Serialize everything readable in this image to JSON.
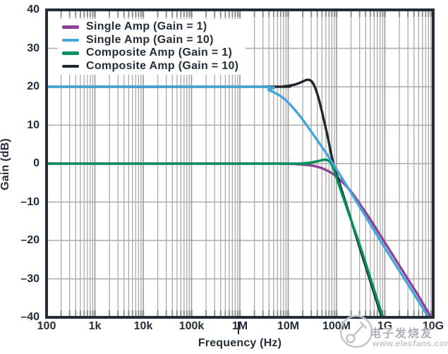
{
  "chart_data": {
    "type": "line",
    "title": "",
    "x_axis": {
      "label": "Frequency (Hz)",
      "scale": "log",
      "min": 100,
      "max": 10000000000,
      "tick_values": [
        100,
        1000,
        10000,
        100000,
        1000000,
        10000000,
        100000000,
        1000000000,
        10000000000
      ],
      "tick_labels": [
        "100",
        "1k",
        "10k",
        "100k",
        "1M",
        "10M",
        "100M",
        "1G",
        "10G"
      ]
    },
    "y_axis": {
      "label": "Gain (dB)",
      "min": -40,
      "max": 40,
      "tick_step": 10,
      "tick_values": [
        40,
        30,
        20,
        10,
        0,
        -10,
        -20,
        -30,
        -40
      ],
      "tick_labels": [
        "40",
        "30",
        "20",
        "10",
        "0",
        "–10",
        "–20",
        "–30",
        "–40"
      ]
    },
    "grid": true,
    "legend_position": "top-left",
    "series": [
      {
        "name": "Single Amp (Gain = 1)",
        "color": "#8e4196",
        "points": [
          [
            100,
            0
          ],
          [
            3000000,
            0
          ],
          [
            8000000,
            -0.05
          ],
          [
            15000000,
            -0.15
          ],
          [
            30000000,
            -0.5
          ],
          [
            50000000,
            -1.2
          ],
          [
            80000000,
            -2.5
          ],
          [
            120000000,
            -4.3
          ],
          [
            200000000,
            -7.3
          ],
          [
            300000000,
            -10.4
          ],
          [
            500000000,
            -14.5
          ],
          [
            800000000,
            -18.6
          ],
          [
            1300000000,
            -22.8
          ],
          [
            2500000000,
            -28.5
          ],
          [
            5000000000,
            -34.5
          ],
          [
            10000000000,
            -41
          ]
        ]
      },
      {
        "name": "Single Amp (Gain = 10)",
        "color": "#44a5d8",
        "points": [
          [
            100,
            20
          ],
          [
            2000000,
            20
          ],
          [
            4000000,
            19.1
          ],
          [
            8000000,
            17
          ],
          [
            16000000,
            13
          ],
          [
            32000000,
            7.8
          ],
          [
            64000000,
            2.3
          ],
          [
            130000000,
            -3.8
          ],
          [
            260000000,
            -9.9
          ],
          [
            510000000,
            -15.9
          ],
          [
            1000000000,
            -21.9
          ],
          [
            2000000000,
            -27.9
          ],
          [
            4000000000,
            -33.9
          ],
          [
            10000000000,
            -41.9
          ]
        ]
      },
      {
        "name": "Composite Amp (Gain = 1)",
        "color": "#00905c",
        "points": [
          [
            100,
            0
          ],
          [
            10000000,
            0
          ],
          [
            20000000,
            0.1
          ],
          [
            30000000,
            0.3
          ],
          [
            40000000,
            0.6
          ],
          [
            50000000,
            0.9
          ],
          [
            58000000,
            1.0
          ],
          [
            67000000,
            0.8
          ],
          [
            76000000,
            0.2
          ],
          [
            88000000,
            -1.6
          ],
          [
            105000000,
            -4.5
          ],
          [
            135000000,
            -8.5
          ],
          [
            185000000,
            -13.5
          ],
          [
            290000000,
            -20.5
          ],
          [
            460000000,
            -28.3
          ],
          [
            730000000,
            -36.2
          ],
          [
            1000000000,
            -41.5
          ]
        ]
      },
      {
        "name": "Composite Amp (Gain = 10)",
        "color": "#20262e",
        "points": [
          [
            100,
            20
          ],
          [
            4000000,
            20
          ],
          [
            8000000,
            20.1
          ],
          [
            13000000,
            20.5
          ],
          [
            18000000,
            21.1
          ],
          [
            23000000,
            21.7
          ],
          [
            27000000,
            21.8
          ],
          [
            31000000,
            21.3
          ],
          [
            36000000,
            19.8
          ],
          [
            43000000,
            16.8
          ],
          [
            52000000,
            12.6
          ],
          [
            65000000,
            7.2
          ],
          [
            86000000,
            0
          ],
          [
            120000000,
            -5.8
          ],
          [
            170000000,
            -11.8
          ],
          [
            270000000,
            -19.9
          ],
          [
            430000000,
            -28
          ],
          [
            680000000,
            -35.9
          ],
          [
            860000000,
            -40
          ],
          [
            1000000000,
            -44
          ]
        ]
      }
    ],
    "draw_order": [
      0,
      3,
      2,
      1
    ]
  },
  "colors": {
    "frame": "#232e39",
    "text": "#232e39",
    "grid_major": "#9a9a9a",
    "grid_minor": "#ababab",
    "tick_stub": "#8e8e8e",
    "watermark_gray": "#b9bdc2"
  },
  "watermark": {
    "cn_text": "电子发烧友",
    "url": "www.elecfans.com"
  }
}
